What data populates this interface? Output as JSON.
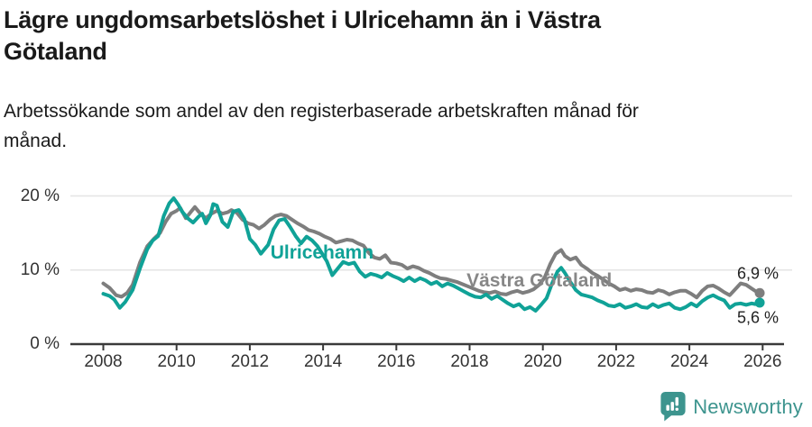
{
  "header": {
    "title_lines": [
      "Lägre ungdomsarbetslöshet i Ulricehamn än i Västra",
      "Götaland"
    ],
    "subtitle_lines": [
      "Arbetssökande som andel av den registerbaserade arbetskraften månad för",
      "månad."
    ]
  },
  "footer": {
    "brand": "Newsworthy",
    "logo_icon": "bar-chart-speech-bubble-icon"
  },
  "colors": {
    "ulricehamn": "#10a297",
    "vastra_gotaland": "#7e7e7e",
    "vastra_gotaland_label": "#878787",
    "gridline": "#e4e4e4",
    "axis": "#3a3a3a",
    "tick_text": "#333333",
    "end_label_text": "#222222",
    "brand_teal": "#3d948e"
  },
  "chart_data": {
    "type": "line",
    "title": "Lägre ungdomsarbetslöshet i Ulricehamn än i Västra Götaland",
    "subtitle": "Arbetssökande som andel av den registerbaserade arbetskraften månad för månad.",
    "unit": "%",
    "xlim": [
      2007.1,
      2026.6
    ],
    "ylim": [
      0,
      21.5
    ],
    "grid": "horizontal",
    "x_ticks": [
      {
        "year": 2008,
        "label": "2008"
      },
      {
        "year": 2010,
        "label": "2010"
      },
      {
        "year": 2012,
        "label": "2012"
      },
      {
        "year": 2014,
        "label": "2014"
      },
      {
        "year": 2016,
        "label": "2016"
      },
      {
        "year": 2018,
        "label": "2018"
      },
      {
        "year": 2020,
        "label": "2020"
      },
      {
        "year": 2022,
        "label": "2022"
      },
      {
        "year": 2024,
        "label": "2024"
      },
      {
        "year": 2026,
        "label": "2026"
      }
    ],
    "y_ticks": [
      {
        "value": 0,
        "label": "0 %"
      },
      {
        "value": 10,
        "label": "10 %"
      },
      {
        "value": 20,
        "label": "20 %"
      }
    ],
    "annotations": [
      {
        "text": "Ulricehamn",
        "year": 2013.97,
        "value": 12.3,
        "color": "#10a297"
      },
      {
        "text": "Västra Götaland",
        "year": 2019.9,
        "value": 8.45,
        "color": "#878787"
      }
    ],
    "series": [
      {
        "name": "Västra Götaland",
        "color": "#7e7e7e",
        "end_label": "6,9 %",
        "end_value": 6.9,
        "end_label_side": "above",
        "points": [
          [
            2008.0,
            8.2
          ],
          [
            2008.17,
            7.6
          ],
          [
            2008.35,
            6.6
          ],
          [
            2008.5,
            6.4
          ],
          [
            2008.65,
            6.9
          ],
          [
            2008.8,
            8.0
          ],
          [
            2009.0,
            11.0
          ],
          [
            2009.2,
            13.2
          ],
          [
            2009.4,
            14.3
          ],
          [
            2009.55,
            15.0
          ],
          [
            2009.7,
            16.5
          ],
          [
            2009.85,
            17.6
          ],
          [
            2010.0,
            18.0
          ],
          [
            2010.1,
            18.4
          ],
          [
            2010.25,
            17.0
          ],
          [
            2010.4,
            17.9
          ],
          [
            2010.5,
            18.5
          ],
          [
            2010.65,
            17.6
          ],
          [
            2010.8,
            17.0
          ],
          [
            2010.95,
            17.6
          ],
          [
            2011.1,
            18.0
          ],
          [
            2011.25,
            17.6
          ],
          [
            2011.4,
            17.8
          ],
          [
            2011.5,
            18.1
          ],
          [
            2011.65,
            17.7
          ],
          [
            2011.8,
            16.8
          ],
          [
            2011.95,
            16.3
          ],
          [
            2012.1,
            16.1
          ],
          [
            2012.25,
            15.6
          ],
          [
            2012.4,
            16.1
          ],
          [
            2012.55,
            16.8
          ],
          [
            2012.7,
            17.3
          ],
          [
            2012.85,
            17.5
          ],
          [
            2013.0,
            17.3
          ],
          [
            2013.15,
            16.8
          ],
          [
            2013.3,
            16.3
          ],
          [
            2013.45,
            15.9
          ],
          [
            2013.6,
            15.4
          ],
          [
            2013.75,
            15.2
          ],
          [
            2013.9,
            14.9
          ],
          [
            2014.05,
            14.5
          ],
          [
            2014.2,
            14.2
          ],
          [
            2014.35,
            13.7
          ],
          [
            2014.5,
            13.9
          ],
          [
            2014.65,
            14.1
          ],
          [
            2014.8,
            14.0
          ],
          [
            2014.95,
            13.6
          ],
          [
            2015.1,
            13.3
          ],
          [
            2015.25,
            12.3
          ],
          [
            2015.4,
            11.7
          ],
          [
            2015.55,
            11.5
          ],
          [
            2015.7,
            12.0
          ],
          [
            2015.85,
            11.0
          ],
          [
            2016.0,
            10.9
          ],
          [
            2016.15,
            10.7
          ],
          [
            2016.3,
            10.2
          ],
          [
            2016.45,
            10.5
          ],
          [
            2016.6,
            10.3
          ],
          [
            2016.75,
            9.9
          ],
          [
            2016.9,
            9.6
          ],
          [
            2017.05,
            9.2
          ],
          [
            2017.2,
            8.9
          ],
          [
            2017.35,
            8.8
          ],
          [
            2017.5,
            8.6
          ],
          [
            2017.65,
            8.4
          ],
          [
            2017.8,
            8.1
          ],
          [
            2017.95,
            7.8
          ],
          [
            2018.1,
            7.5
          ],
          [
            2018.25,
            7.2
          ],
          [
            2018.4,
            7.0
          ],
          [
            2018.55,
            6.9
          ],
          [
            2018.7,
            7.1
          ],
          [
            2018.85,
            6.8
          ],
          [
            2019.0,
            6.7
          ],
          [
            2019.15,
            7.0
          ],
          [
            2019.3,
            7.2
          ],
          [
            2019.45,
            6.9
          ],
          [
            2019.6,
            7.1
          ],
          [
            2019.75,
            7.4
          ],
          [
            2019.9,
            8.0
          ],
          [
            2020.05,
            9.0
          ],
          [
            2020.2,
            10.8
          ],
          [
            2020.35,
            12.2
          ],
          [
            2020.5,
            12.7
          ],
          [
            2020.6,
            11.9
          ],
          [
            2020.75,
            11.4
          ],
          [
            2020.9,
            11.7
          ],
          [
            2021.05,
            10.7
          ],
          [
            2021.2,
            10.2
          ],
          [
            2021.35,
            9.6
          ],
          [
            2021.5,
            9.2
          ],
          [
            2021.65,
            8.7
          ],
          [
            2021.8,
            8.2
          ],
          [
            2021.95,
            7.8
          ],
          [
            2022.1,
            7.3
          ],
          [
            2022.25,
            7.5
          ],
          [
            2022.4,
            7.2
          ],
          [
            2022.55,
            7.4
          ],
          [
            2022.7,
            7.3
          ],
          [
            2022.85,
            7.0
          ],
          [
            2023.0,
            6.9
          ],
          [
            2023.15,
            7.3
          ],
          [
            2023.3,
            7.1
          ],
          [
            2023.45,
            6.7
          ],
          [
            2023.6,
            7.0
          ],
          [
            2023.75,
            7.2
          ],
          [
            2023.9,
            7.2
          ],
          [
            2024.05,
            6.8
          ],
          [
            2024.2,
            6.3
          ],
          [
            2024.35,
            7.2
          ],
          [
            2024.5,
            7.8
          ],
          [
            2024.65,
            7.9
          ],
          [
            2024.8,
            7.5
          ],
          [
            2024.95,
            7.0
          ],
          [
            2025.1,
            6.6
          ],
          [
            2025.25,
            7.4
          ],
          [
            2025.4,
            8.2
          ],
          [
            2025.55,
            8.0
          ],
          [
            2025.7,
            7.5
          ],
          [
            2025.85,
            7.0
          ],
          [
            2025.92,
            6.9
          ]
        ]
      },
      {
        "name": "Ulricehamn",
        "color": "#10a297",
        "end_label": "5,6 %",
        "end_value": 5.6,
        "end_label_side": "below",
        "points": [
          [
            2008.0,
            6.8
          ],
          [
            2008.17,
            6.5
          ],
          [
            2008.3,
            6.0
          ],
          [
            2008.45,
            4.9
          ],
          [
            2008.6,
            5.7
          ],
          [
            2008.8,
            7.3
          ],
          [
            2009.0,
            10.2
          ],
          [
            2009.2,
            12.8
          ],
          [
            2009.35,
            14.0
          ],
          [
            2009.5,
            14.6
          ],
          [
            2009.65,
            17.3
          ],
          [
            2009.8,
            19.0
          ],
          [
            2009.92,
            19.7
          ],
          [
            2010.05,
            18.8
          ],
          [
            2010.15,
            17.9
          ],
          [
            2010.3,
            17.0
          ],
          [
            2010.45,
            16.4
          ],
          [
            2010.6,
            17.2
          ],
          [
            2010.7,
            17.6
          ],
          [
            2010.8,
            16.3
          ],
          [
            2010.92,
            17.4
          ],
          [
            2011.0,
            18.9
          ],
          [
            2011.1,
            18.7
          ],
          [
            2011.25,
            16.5
          ],
          [
            2011.4,
            15.8
          ],
          [
            2011.55,
            17.9
          ],
          [
            2011.7,
            18.1
          ],
          [
            2011.85,
            16.9
          ],
          [
            2012.0,
            14.2
          ],
          [
            2012.15,
            13.4
          ],
          [
            2012.3,
            12.2
          ],
          [
            2012.5,
            13.4
          ],
          [
            2012.65,
            15.5
          ],
          [
            2012.8,
            16.7
          ],
          [
            2012.95,
            16.9
          ],
          [
            2013.1,
            15.8
          ],
          [
            2013.25,
            14.6
          ],
          [
            2013.4,
            13.6
          ],
          [
            2013.55,
            14.5
          ],
          [
            2013.7,
            14.0
          ],
          [
            2013.85,
            13.2
          ],
          [
            2014.0,
            12.0
          ],
          [
            2014.1,
            11.2
          ],
          [
            2014.25,
            9.3
          ],
          [
            2014.4,
            10.2
          ],
          [
            2014.55,
            11.1
          ],
          [
            2014.7,
            10.8
          ],
          [
            2014.85,
            11.0
          ],
          [
            2015.0,
            9.8
          ],
          [
            2015.15,
            9.1
          ],
          [
            2015.3,
            9.5
          ],
          [
            2015.45,
            9.3
          ],
          [
            2015.6,
            9.0
          ],
          [
            2015.75,
            9.6
          ],
          [
            2015.9,
            9.2
          ],
          [
            2016.05,
            8.9
          ],
          [
            2016.2,
            8.5
          ],
          [
            2016.35,
            9.0
          ],
          [
            2016.5,
            8.5
          ],
          [
            2016.65,
            8.9
          ],
          [
            2016.8,
            8.6
          ],
          [
            2016.95,
            8.1
          ],
          [
            2017.1,
            8.4
          ],
          [
            2017.25,
            7.8
          ],
          [
            2017.4,
            8.2
          ],
          [
            2017.55,
            7.9
          ],
          [
            2017.7,
            7.5
          ],
          [
            2017.85,
            7.1
          ],
          [
            2018.0,
            6.7
          ],
          [
            2018.15,
            6.4
          ],
          [
            2018.3,
            6.3
          ],
          [
            2018.45,
            6.7
          ],
          [
            2018.6,
            6.1
          ],
          [
            2018.75,
            6.5
          ],
          [
            2018.9,
            6.0
          ],
          [
            2019.05,
            5.5
          ],
          [
            2019.2,
            5.1
          ],
          [
            2019.35,
            5.4
          ],
          [
            2019.5,
            4.7
          ],
          [
            2019.65,
            5.0
          ],
          [
            2019.8,
            4.5
          ],
          [
            2019.95,
            5.3
          ],
          [
            2020.1,
            6.2
          ],
          [
            2020.25,
            8.2
          ],
          [
            2020.4,
            9.8
          ],
          [
            2020.5,
            10.3
          ],
          [
            2020.6,
            9.6
          ],
          [
            2020.75,
            8.4
          ],
          [
            2020.9,
            7.3
          ],
          [
            2021.05,
            6.7
          ],
          [
            2021.2,
            6.5
          ],
          [
            2021.35,
            6.3
          ],
          [
            2021.5,
            5.9
          ],
          [
            2021.65,
            5.6
          ],
          [
            2021.8,
            5.2
          ],
          [
            2021.95,
            5.1
          ],
          [
            2022.1,
            5.4
          ],
          [
            2022.25,
            4.9
          ],
          [
            2022.4,
            5.1
          ],
          [
            2022.55,
            5.4
          ],
          [
            2022.7,
            5.0
          ],
          [
            2022.85,
            4.9
          ],
          [
            2023.0,
            5.4
          ],
          [
            2023.15,
            5.0
          ],
          [
            2023.3,
            5.3
          ],
          [
            2023.45,
            5.5
          ],
          [
            2023.6,
            4.9
          ],
          [
            2023.75,
            4.7
          ],
          [
            2023.9,
            5.0
          ],
          [
            2024.05,
            5.5
          ],
          [
            2024.2,
            5.1
          ],
          [
            2024.35,
            5.8
          ],
          [
            2024.5,
            6.3
          ],
          [
            2024.65,
            6.6
          ],
          [
            2024.8,
            6.2
          ],
          [
            2024.95,
            5.9
          ],
          [
            2025.1,
            4.9
          ],
          [
            2025.25,
            5.4
          ],
          [
            2025.4,
            5.5
          ],
          [
            2025.55,
            5.3
          ],
          [
            2025.7,
            5.5
          ],
          [
            2025.8,
            5.4
          ],
          [
            2025.92,
            5.6
          ]
        ]
      }
    ]
  }
}
